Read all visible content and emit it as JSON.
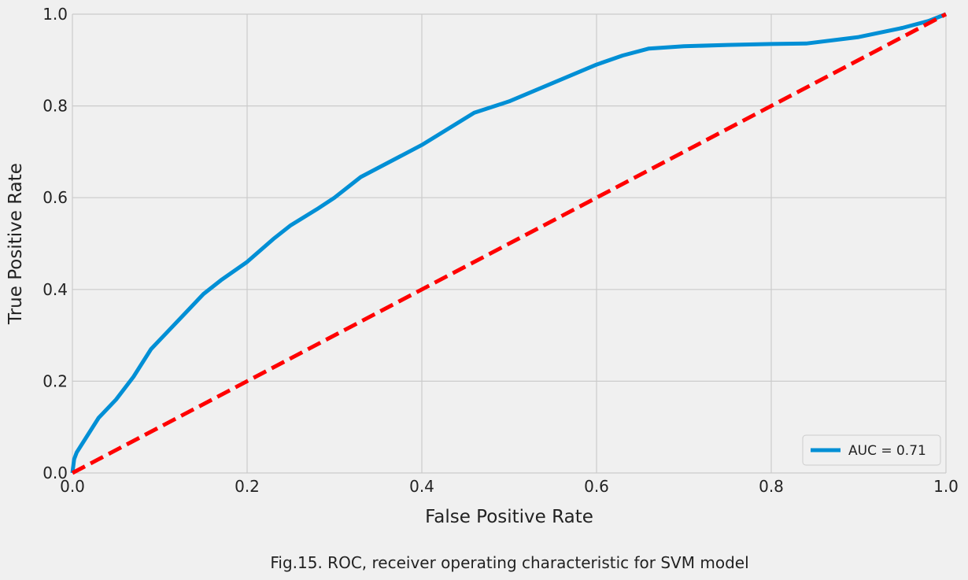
{
  "chart_data": {
    "type": "line",
    "title": "",
    "xlabel": "False Positive Rate",
    "ylabel": "True Positive Rate",
    "xlim": [
      0.0,
      1.0
    ],
    "ylim": [
      0.0,
      1.0
    ],
    "xticks": [
      "0.0",
      "0.2",
      "0.4",
      "0.6",
      "0.8",
      "1.0"
    ],
    "yticks": [
      "0.0",
      "0.2",
      "0.4",
      "0.6",
      "0.8",
      "1.0"
    ],
    "grid": true,
    "legend_position": "lower-right",
    "series": [
      {
        "name": "AUC = 0.71",
        "color": "#008fd5",
        "style": "solid",
        "x": [
          0.0,
          0.002,
          0.005,
          0.01,
          0.02,
          0.03,
          0.05,
          0.07,
          0.09,
          0.11,
          0.13,
          0.15,
          0.17,
          0.2,
          0.23,
          0.25,
          0.28,
          0.3,
          0.33,
          0.36,
          0.4,
          0.43,
          0.46,
          0.5,
          0.55,
          0.6,
          0.63,
          0.66,
          0.7,
          0.75,
          0.8,
          0.84,
          0.9,
          0.95,
          0.98,
          1.0
        ],
        "y": [
          0.0,
          0.03,
          0.045,
          0.06,
          0.09,
          0.12,
          0.16,
          0.21,
          0.27,
          0.31,
          0.35,
          0.39,
          0.42,
          0.46,
          0.51,
          0.54,
          0.575,
          0.6,
          0.645,
          0.675,
          0.715,
          0.75,
          0.785,
          0.81,
          0.85,
          0.89,
          0.91,
          0.925,
          0.93,
          0.933,
          0.935,
          0.936,
          0.95,
          0.97,
          0.985,
          1.0
        ]
      },
      {
        "name": "",
        "color": "#ff0000",
        "style": "dashed",
        "x": [
          0.0,
          1.0
        ],
        "y": [
          0.0,
          1.0
        ]
      }
    ]
  },
  "caption": "Fig.15. ROC, receiver operating characteristic for SVM model"
}
